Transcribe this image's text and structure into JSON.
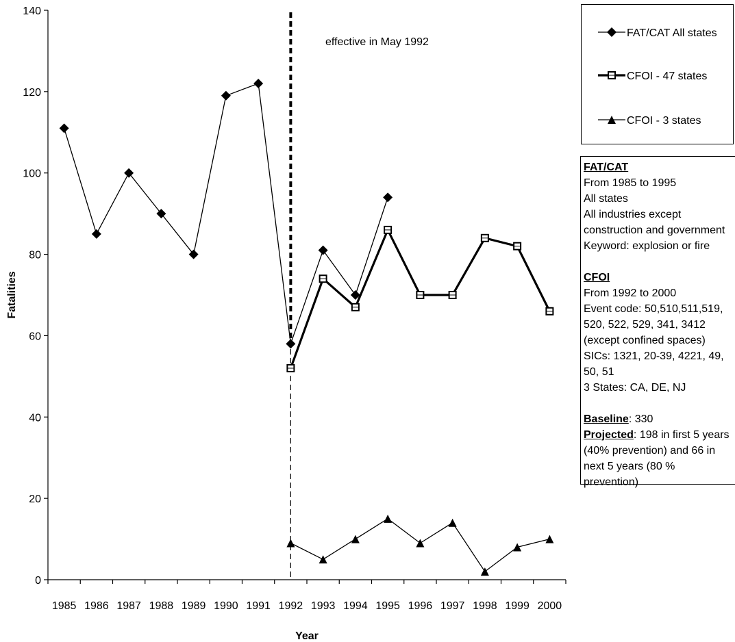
{
  "chart_data": {
    "type": "line",
    "title": "",
    "xlabel": "Year",
    "ylabel": "Fatalities",
    "ylim": [
      0,
      140
    ],
    "yticks": [
      0,
      20,
      40,
      60,
      80,
      100,
      120,
      140
    ],
    "categories": [
      "1985",
      "1986",
      "1987",
      "1988",
      "1989",
      "1990",
      "1991",
      "1992",
      "1993",
      "1994",
      "1995",
      "1996",
      "1997",
      "1998",
      "1999",
      "2000"
    ],
    "series": [
      {
        "name": "FAT/CAT All states",
        "marker": "diamond",
        "values": [
          111,
          85,
          100,
          90,
          80,
          119,
          122,
          58,
          81,
          70,
          94,
          null,
          null,
          null,
          null,
          null
        ]
      },
      {
        "name": "CFOI - 47 states",
        "marker": "square",
        "values": [
          null,
          null,
          null,
          null,
          null,
          null,
          null,
          52,
          74,
          67,
          86,
          70,
          70,
          84,
          82,
          66
        ]
      },
      {
        "name": "CFOI - 3 states",
        "marker": "triangle",
        "values": [
          null,
          null,
          null,
          null,
          null,
          null,
          null,
          9,
          5,
          10,
          15,
          9,
          14,
          2,
          8,
          10
        ]
      }
    ],
    "annotation": {
      "text": "effective in May 1992",
      "x_category": "1992"
    },
    "legend_placement": "right",
    "grid": false
  },
  "notes": {
    "fatcat": {
      "title": "FAT/CAT",
      "lines": [
        "From 1985 to 1995",
        "All states",
        "All industries except",
        "construction and government",
        "Keyword: explosion or fire"
      ]
    },
    "cfoi": {
      "title": "CFOI",
      "lines": [
        "From 1992 to 2000",
        "Event code: 50,510,511,519,",
        "520, 522, 529, 341, 3412",
        "(except confined spaces)",
        "SICs: 1321, 20-39, 4221, 49,",
        "50, 51",
        "3 States: CA, DE, NJ"
      ]
    },
    "baseline": {
      "label": "Baseline",
      "value": ": 330"
    },
    "projected": {
      "label": "Projected",
      "value": ":  198 in first 5 years (40% prevention) and 66 in next 5 years (80 % prevention)"
    }
  }
}
